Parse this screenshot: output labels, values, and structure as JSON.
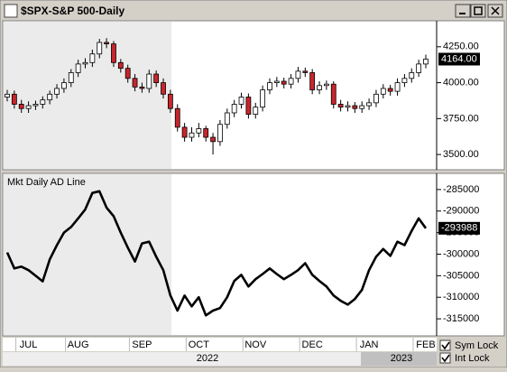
{
  "window": {
    "title": "$SPX-S&P 500-Daily"
  },
  "chart_data": [
    {
      "type": "candlestick",
      "open": [
        3900,
        3920,
        3850,
        3820,
        3840,
        3850,
        3880,
        3920,
        3960,
        4000,
        4070,
        4130,
        4140,
        4200,
        4280,
        4270,
        4140,
        4100,
        4030,
        3970,
        3960,
        4060,
        4000,
        3920,
        3820,
        3690,
        3620,
        3650,
        3680,
        3620,
        3590,
        3710,
        3790,
        3850,
        3900,
        3780,
        3830,
        3950,
        4000,
        4010,
        3990,
        4030,
        4080,
        4070,
        3950,
        3980,
        3990,
        3850,
        3830,
        3840,
        3820,
        3840,
        3860,
        3920,
        3960,
        3940,
        4000,
        4030,
        4070,
        4130
      ],
      "high": [
        3950,
        3945,
        3880,
        3870,
        3875,
        3905,
        3945,
        3990,
        4030,
        4095,
        4160,
        4170,
        4230,
        4305,
        4310,
        4290,
        4165,
        4125,
        4060,
        4000,
        4090,
        4085,
        4030,
        3950,
        3850,
        3720,
        3690,
        3720,
        3700,
        3650,
        3740,
        3820,
        3880,
        3930,
        3925,
        3860,
        3980,
        4030,
        4040,
        4035,
        4060,
        4110,
        4105,
        4095,
        4010,
        4015,
        4010,
        3880,
        3870,
        3865,
        3870,
        3890,
        3950,
        3990,
        3985,
        4030,
        4060,
        4100,
        4160,
        4195
      ],
      "low": [
        3870,
        3820,
        3790,
        3790,
        3810,
        3820,
        3850,
        3890,
        3930,
        3970,
        4040,
        4100,
        4110,
        4170,
        4240,
        4110,
        4070,
        4000,
        3940,
        3930,
        3930,
        3970,
        3890,
        3790,
        3660,
        3590,
        3590,
        3620,
        3590,
        3500,
        3560,
        3680,
        3760,
        3820,
        3750,
        3750,
        3800,
        3920,
        3970,
        3960,
        3960,
        4000,
        4040,
        3920,
        3920,
        3950,
        3820,
        3800,
        3800,
        3790,
        3790,
        3810,
        3830,
        3890,
        3910,
        3910,
        3970,
        4000,
        4040,
        4100
      ],
      "close": [
        3920,
        3850,
        3820,
        3840,
        3850,
        3880,
        3920,
        3960,
        4000,
        4070,
        4130,
        4140,
        4200,
        4280,
        4270,
        4140,
        4100,
        4030,
        3970,
        3960,
        4060,
        4000,
        3920,
        3820,
        3690,
        3620,
        3650,
        3680,
        3620,
        3590,
        3710,
        3790,
        3850,
        3900,
        3780,
        3830,
        3950,
        4000,
        4010,
        3990,
        4030,
        4080,
        4070,
        3950,
        3980,
        3990,
        3850,
        3830,
        3840,
        3820,
        3840,
        3860,
        3920,
        3960,
        3940,
        4000,
        4030,
        4070,
        4130,
        4164
      ],
      "last_label": "4164.00",
      "up_color": "#ffffff",
      "down_color": "#c8262c",
      "ylim": [
        3394,
        4431
      ],
      "yticks": [
        {
          "value": 3500,
          "label": "3500.00"
        },
        {
          "value": 3750,
          "label": "3750.00"
        },
        {
          "value": 4000,
          "label": "4000.00"
        },
        {
          "value": 4250,
          "label": "4250.00"
        }
      ]
    },
    {
      "type": "line",
      "title": "Mkt Daily AD Line",
      "color": "#000000",
      "categories": [
        null,
        null,
        null,
        "JUL",
        null,
        null,
        null,
        null,
        null,
        null,
        "AUG",
        null,
        null,
        null,
        null,
        null,
        null,
        null,
        null,
        "SEP",
        null,
        null,
        null,
        null,
        null,
        null,
        null,
        "OCT",
        null,
        null,
        null,
        null,
        null,
        null,
        null,
        "NOV",
        null,
        null,
        null,
        null,
        null,
        null,
        null,
        "DEC",
        null,
        null,
        null,
        null,
        null,
        null,
        null,
        "JAN",
        null,
        null,
        null,
        null,
        null,
        null,
        null,
        "FEB"
      ],
      "values": [
        -299600,
        -303300,
        -302900,
        -303700,
        -305000,
        -306300,
        -301200,
        -297900,
        -295000,
        -293700,
        -291700,
        -289600,
        -285800,
        -285400,
        -289200,
        -291200,
        -295000,
        -298500,
        -301700,
        -297500,
        -297100,
        -300600,
        -303700,
        -309600,
        -313100,
        -309600,
        -312100,
        -310000,
        -314200,
        -313100,
        -312500,
        -310000,
        -306200,
        -304800,
        -307500,
        -305800,
        -304600,
        -303300,
        -304600,
        -305800,
        -304800,
        -303700,
        -302100,
        -304800,
        -306200,
        -307500,
        -309600,
        -310800,
        -311700,
        -310400,
        -308300,
        -303700,
        -300600,
        -298800,
        -300400,
        -297100,
        -297900,
        -294600,
        -291700,
        -293988
      ],
      "ylim": [
        -318958,
        -281250
      ],
      "yticks": [
        -315000,
        -310000,
        -305000,
        -300000,
        -295000,
        -290000,
        -285000
      ]
    }
  ],
  "footer": {
    "years": [
      "2022",
      "2023"
    ]
  },
  "controls": {
    "sym_lock": "Sym Lock",
    "int_lock": "Int Lock"
  }
}
